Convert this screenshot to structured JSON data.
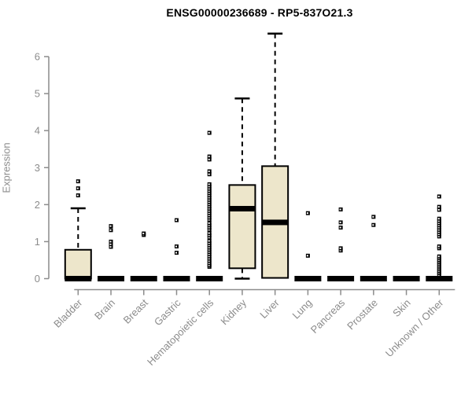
{
  "title": "ENSG00000236689 - RP5-837O21.3",
  "chart_data": {
    "type": "boxplot",
    "title": "ENSG00000236689 - RP5-837O21.3",
    "xlabel": "",
    "ylabel": "Expression",
    "ylim": [
      0,
      6
    ],
    "yticks": [
      0,
      1,
      2,
      3,
      4,
      5,
      6
    ],
    "grid": false,
    "legend": "none",
    "categories": [
      "Bladder",
      "Brain",
      "Breast",
      "Gastric",
      "Hematopoietic cells",
      "Kidney",
      "Liver",
      "Lung",
      "Pancreas",
      "Prostate",
      "Skin",
      "Unknown / Other"
    ],
    "series": [
      {
        "name": "Bladder",
        "q1": 0,
        "median": 0,
        "q3": 0.78,
        "whisker_low": 0,
        "whisker_high": 1.9,
        "outliers": [
          2.25,
          2.44,
          2.63
        ]
      },
      {
        "name": "Brain",
        "q1": 0,
        "median": 0,
        "q3": 0,
        "whisker_low": 0,
        "whisker_high": 0,
        "outliers": [
          0.86,
          0.93,
          1.0,
          1.31,
          1.42
        ]
      },
      {
        "name": "Breast",
        "q1": 0,
        "median": 0,
        "q3": 0,
        "whisker_low": 0,
        "whisker_high": 0,
        "outliers": [
          1.18,
          1.22
        ]
      },
      {
        "name": "Gastric",
        "q1": 0,
        "median": 0,
        "q3": 0,
        "whisker_low": 0,
        "whisker_high": 0,
        "outliers": [
          0.7,
          0.87,
          1.58
        ]
      },
      {
        "name": "Hematopoietic cells",
        "q1": 0,
        "median": 0,
        "q3": 0,
        "whisker_low": 0,
        "whisker_high": 0,
        "outliers": [
          0.32,
          0.36,
          0.42,
          0.48,
          0.54,
          0.6,
          0.66,
          0.72,
          0.78,
          0.84,
          0.9,
          0.96,
          1.02,
          1.11,
          1.17,
          1.23,
          1.32,
          1.38,
          1.44,
          1.5,
          1.59,
          1.65,
          1.71,
          1.77,
          1.83,
          1.89,
          1.95,
          2.01,
          2.07,
          2.13,
          2.19,
          2.25,
          2.31,
          2.37,
          2.43,
          2.49,
          2.55,
          2.82,
          2.9,
          3.22,
          3.3,
          3.94
        ]
      },
      {
        "name": "Kidney",
        "q1": 0.28,
        "median": 1.89,
        "q3": 2.53,
        "whisker_low": 0,
        "whisker_high": 4.87,
        "outliers": []
      },
      {
        "name": "Liver",
        "q1": 0.02,
        "median": 1.52,
        "q3": 3.04,
        "whisker_low": 0.02,
        "whisker_high": 6.62,
        "outliers": []
      },
      {
        "name": "Lung",
        "q1": 0,
        "median": 0,
        "q3": 0,
        "whisker_low": 0,
        "whisker_high": 0,
        "outliers": [
          0.62,
          1.77
        ]
      },
      {
        "name": "Pancreas",
        "q1": 0,
        "median": 0,
        "q3": 0,
        "whisker_low": 0,
        "whisker_high": 0,
        "outliers": [
          0.76,
          0.82,
          1.38,
          1.52,
          1.87
        ]
      },
      {
        "name": "Prostate",
        "q1": 0,
        "median": 0,
        "q3": 0,
        "whisker_low": 0,
        "whisker_high": 0,
        "outliers": [
          1.45,
          1.67
        ]
      },
      {
        "name": "Skin",
        "q1": 0,
        "median": 0,
        "q3": 0,
        "whisker_low": 0,
        "whisker_high": 0,
        "outliers": []
      },
      {
        "name": "Unknown / Other",
        "q1": 0,
        "median": 0,
        "q3": 0,
        "whisker_low": 0,
        "whisker_high": 0,
        "outliers": [
          0.1,
          0.15,
          0.2,
          0.25,
          0.3,
          0.35,
          0.4,
          0.45,
          0.5,
          0.55,
          0.6,
          0.82,
          0.87,
          1.14,
          1.2,
          1.26,
          1.32,
          1.38,
          1.44,
          1.5,
          1.56,
          1.62,
          1.86,
          1.94,
          2.22
        ]
      }
    ],
    "colors": {
      "box_fill": "#ede6cb",
      "box_stroke": "#000000",
      "median": "#000000",
      "whisker": "#000000",
      "outlier": "#000000",
      "axis": "#8c8c8c",
      "tick_label": "#8c8c8c",
      "title": "#000000",
      "background": "#ffffff"
    }
  }
}
